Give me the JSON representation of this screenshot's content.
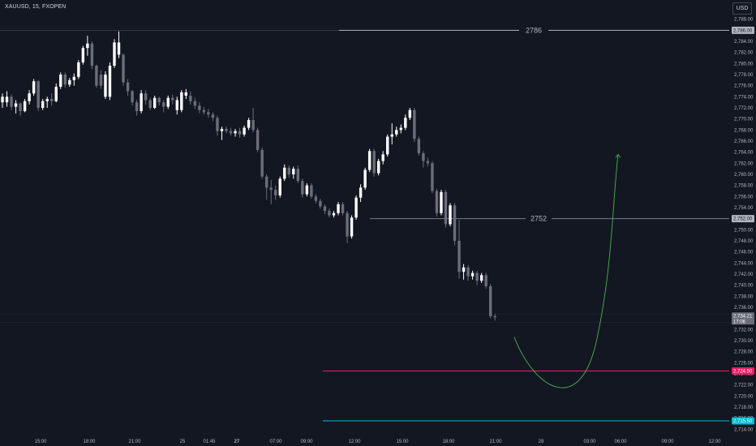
{
  "header": {
    "symbol_title": "XAUUSD, 15, FXOPEN",
    "currency": "USD"
  },
  "chart_data": {
    "type": "candlestick",
    "y_axis": {
      "range": [
        2713.6,
        2790.0
      ],
      "ticks": [
        2788,
        2786,
        2784,
        2782,
        2780,
        2778,
        2776,
        2774,
        2772,
        2770,
        2768,
        2766,
        2764,
        2762,
        2760,
        2758,
        2756,
        2754,
        2752,
        2750,
        2748,
        2746,
        2744,
        2742,
        2740,
        2738,
        2736,
        2734,
        2732,
        2730,
        2728,
        2726,
        2724,
        2722,
        2720,
        2718,
        2716,
        2714
      ],
      "tick_labels": [
        "2,788.00",
        "2,786.00",
        "2,784.00",
        "2,782.00",
        "2,780.00",
        "2,778.00",
        "2,776.00",
        "2,774.00",
        "2,772.00",
        "2,770.00",
        "2,768.00",
        "2,766.00",
        "2,764.00",
        "2,762.00",
        "2,760.00",
        "2,758.00",
        "2,756.00",
        "2,754.00",
        "2,752.00",
        "2,750.00",
        "2,748.00",
        "2,746.00",
        "2,744.00",
        "2,742.00",
        "2,740.00",
        "2,738.00",
        "2,736.00",
        "2,734.00",
        "2,732.00",
        "2,730.00",
        "2,728.00",
        "2,726.00",
        "2,724.00",
        "2,722.00",
        "2,720.00",
        "2,718.00",
        "2,716.00",
        "2,714.00"
      ]
    },
    "x_axis": {
      "labels": [
        "15:00",
        "18:00",
        "21:00",
        "25",
        "01:45",
        "27",
        "07:00",
        "09:00",
        "12:00",
        "15:00",
        "18:00",
        "21:00",
        "28",
        "03:00",
        "06:00",
        "09:00",
        "12:00"
      ],
      "bold_labels": [
        "27"
      ]
    },
    "candles": [
      {
        "o": 2774.0,
        "h": 2774.6,
        "l": 2772.0,
        "c": 2773.0,
        "col": "w"
      },
      {
        "o": 2773.0,
        "h": 2775.0,
        "l": 2772.2,
        "c": 2774.0,
        "col": "w"
      },
      {
        "o": 2774.0,
        "h": 2774.4,
        "l": 2771.6,
        "c": 2772.2,
        "col": "g"
      },
      {
        "o": 2772.2,
        "h": 2773.4,
        "l": 2771.0,
        "c": 2772.8,
        "col": "w"
      },
      {
        "o": 2772.8,
        "h": 2773.0,
        "l": 2770.6,
        "c": 2771.4,
        "col": "g"
      },
      {
        "o": 2771.4,
        "h": 2773.6,
        "l": 2771.2,
        "c": 2773.2,
        "col": "w"
      },
      {
        "o": 2773.2,
        "h": 2775.2,
        "l": 2772.6,
        "c": 2774.6,
        "col": "w"
      },
      {
        "o": 2774.6,
        "h": 2777.2,
        "l": 2774.2,
        "c": 2776.8,
        "col": "w"
      },
      {
        "o": 2776.8,
        "h": 2777.0,
        "l": 2771.4,
        "c": 2772.0,
        "col": "g"
      },
      {
        "o": 2772.0,
        "h": 2773.6,
        "l": 2771.6,
        "c": 2773.2,
        "col": "w"
      },
      {
        "o": 2773.2,
        "h": 2774.0,
        "l": 2772.0,
        "c": 2773.6,
        "col": "w"
      },
      {
        "o": 2773.6,
        "h": 2774.6,
        "l": 2772.4,
        "c": 2773.2,
        "col": "g"
      },
      {
        "o": 2773.2,
        "h": 2776.4,
        "l": 2773.0,
        "c": 2775.8,
        "col": "w"
      },
      {
        "o": 2775.8,
        "h": 2778.4,
        "l": 2775.4,
        "c": 2778.0,
        "col": "w"
      },
      {
        "o": 2778.0,
        "h": 2778.4,
        "l": 2775.6,
        "c": 2776.2,
        "col": "g"
      },
      {
        "o": 2776.2,
        "h": 2777.4,
        "l": 2775.8,
        "c": 2777.0,
        "col": "w"
      },
      {
        "o": 2777.0,
        "h": 2778.2,
        "l": 2776.0,
        "c": 2777.6,
        "col": "w"
      },
      {
        "o": 2777.6,
        "h": 2780.6,
        "l": 2777.2,
        "c": 2780.2,
        "col": "w"
      },
      {
        "o": 2780.2,
        "h": 2783.2,
        "l": 2779.8,
        "c": 2782.8,
        "col": "w"
      },
      {
        "o": 2782.8,
        "h": 2785.0,
        "l": 2781.4,
        "c": 2783.6,
        "col": "w"
      },
      {
        "o": 2783.6,
        "h": 2784.0,
        "l": 2779.0,
        "c": 2779.6,
        "col": "g"
      },
      {
        "o": 2779.6,
        "h": 2779.8,
        "l": 2775.6,
        "c": 2776.0,
        "col": "g"
      },
      {
        "o": 2776.0,
        "h": 2778.8,
        "l": 2775.4,
        "c": 2778.0,
        "col": "g"
      },
      {
        "o": 2778.0,
        "h": 2778.6,
        "l": 2773.6,
        "c": 2774.0,
        "col": "w"
      },
      {
        "o": 2774.0,
        "h": 2780.2,
        "l": 2773.4,
        "c": 2779.6,
        "col": "w"
      },
      {
        "o": 2779.6,
        "h": 2784.4,
        "l": 2779.2,
        "c": 2783.8,
        "col": "w"
      },
      {
        "o": 2783.8,
        "h": 2785.8,
        "l": 2781.0,
        "c": 2781.6,
        "col": "w"
      },
      {
        "o": 2781.6,
        "h": 2781.8,
        "l": 2776.0,
        "c": 2776.6,
        "col": "g"
      },
      {
        "o": 2776.6,
        "h": 2777.2,
        "l": 2774.2,
        "c": 2775.0,
        "col": "g"
      },
      {
        "o": 2775.0,
        "h": 2775.2,
        "l": 2772.4,
        "c": 2773.0,
        "col": "g"
      },
      {
        "o": 2773.0,
        "h": 2773.4,
        "l": 2770.6,
        "c": 2771.4,
        "col": "g"
      },
      {
        "o": 2771.4,
        "h": 2775.2,
        "l": 2771.0,
        "c": 2774.6,
        "col": "w"
      },
      {
        "o": 2774.6,
        "h": 2775.2,
        "l": 2772.6,
        "c": 2773.4,
        "col": "g"
      },
      {
        "o": 2773.4,
        "h": 2773.8,
        "l": 2771.6,
        "c": 2772.0,
        "col": "g"
      },
      {
        "o": 2772.0,
        "h": 2774.2,
        "l": 2771.8,
        "c": 2773.8,
        "col": "w"
      },
      {
        "o": 2773.8,
        "h": 2774.0,
        "l": 2772.4,
        "c": 2773.0,
        "col": "g"
      },
      {
        "o": 2773.0,
        "h": 2773.4,
        "l": 2771.2,
        "c": 2772.2,
        "col": "g"
      },
      {
        "o": 2772.2,
        "h": 2774.2,
        "l": 2771.8,
        "c": 2773.8,
        "col": "w"
      },
      {
        "o": 2773.8,
        "h": 2774.4,
        "l": 2772.6,
        "c": 2773.4,
        "col": "g"
      },
      {
        "o": 2773.4,
        "h": 2774.0,
        "l": 2770.8,
        "c": 2771.6,
        "col": "w"
      },
      {
        "o": 2771.6,
        "h": 2775.2,
        "l": 2771.2,
        "c": 2774.8,
        "col": "w"
      },
      {
        "o": 2774.8,
        "h": 2775.4,
        "l": 2773.6,
        "c": 2774.2,
        "col": "w"
      },
      {
        "o": 2774.2,
        "h": 2775.0,
        "l": 2772.6,
        "c": 2773.2,
        "col": "g"
      },
      {
        "o": 2773.2,
        "h": 2773.8,
        "l": 2771.8,
        "c": 2772.4,
        "col": "g"
      },
      {
        "o": 2772.4,
        "h": 2773.0,
        "l": 2771.0,
        "c": 2771.6,
        "col": "g"
      },
      {
        "o": 2771.6,
        "h": 2772.2,
        "l": 2770.8,
        "c": 2771.2,
        "col": "g"
      },
      {
        "o": 2771.2,
        "h": 2771.8,
        "l": 2770.2,
        "c": 2770.8,
        "col": "g"
      },
      {
        "o": 2770.8,
        "h": 2771.2,
        "l": 2769.6,
        "c": 2770.2,
        "col": "g"
      },
      {
        "o": 2770.2,
        "h": 2770.6,
        "l": 2767.0,
        "c": 2767.8,
        "col": "g"
      },
      {
        "o": 2767.8,
        "h": 2768.6,
        "l": 2766.2,
        "c": 2768.2,
        "col": "w"
      },
      {
        "o": 2768.2,
        "h": 2768.6,
        "l": 2767.4,
        "c": 2767.8,
        "col": "g"
      },
      {
        "o": 2767.8,
        "h": 2768.4,
        "l": 2767.0,
        "c": 2767.4,
        "col": "g"
      },
      {
        "o": 2767.4,
        "h": 2768.2,
        "l": 2766.8,
        "c": 2767.8,
        "col": "w"
      },
      {
        "o": 2767.8,
        "h": 2768.4,
        "l": 2766.6,
        "c": 2767.2,
        "col": "g"
      },
      {
        "o": 2767.2,
        "h": 2768.8,
        "l": 2766.8,
        "c": 2768.4,
        "col": "w"
      },
      {
        "o": 2768.4,
        "h": 2770.2,
        "l": 2768.0,
        "c": 2769.8,
        "col": "w"
      },
      {
        "o": 2769.8,
        "h": 2772.0,
        "l": 2767.6,
        "c": 2768.0,
        "col": "g"
      },
      {
        "o": 2768.0,
        "h": 2768.4,
        "l": 2764.0,
        "c": 2764.4,
        "col": "g"
      },
      {
        "o": 2764.4,
        "h": 2764.8,
        "l": 2759.2,
        "c": 2759.6,
        "col": "g"
      },
      {
        "o": 2759.6,
        "h": 2760.0,
        "l": 2755.4,
        "c": 2757.6,
        "col": "g"
      },
      {
        "o": 2757.6,
        "h": 2759.0,
        "l": 2754.6,
        "c": 2757.2,
        "col": "g"
      },
      {
        "o": 2757.2,
        "h": 2758.0,
        "l": 2755.4,
        "c": 2756.2,
        "col": "g"
      },
      {
        "o": 2756.2,
        "h": 2759.6,
        "l": 2755.8,
        "c": 2759.2,
        "col": "w"
      },
      {
        "o": 2759.2,
        "h": 2761.8,
        "l": 2758.8,
        "c": 2761.2,
        "col": "w"
      },
      {
        "o": 2761.2,
        "h": 2761.6,
        "l": 2759.4,
        "c": 2760.0,
        "col": "g"
      },
      {
        "o": 2760.0,
        "h": 2761.4,
        "l": 2759.2,
        "c": 2761.0,
        "col": "w"
      },
      {
        "o": 2761.0,
        "h": 2761.6,
        "l": 2758.4,
        "c": 2758.8,
        "col": "g"
      },
      {
        "o": 2758.8,
        "h": 2759.2,
        "l": 2755.8,
        "c": 2756.4,
        "col": "g"
      },
      {
        "o": 2756.4,
        "h": 2758.4,
        "l": 2756.0,
        "c": 2758.0,
        "col": "w"
      },
      {
        "o": 2758.0,
        "h": 2758.4,
        "l": 2755.6,
        "c": 2756.0,
        "col": "g"
      },
      {
        "o": 2756.0,
        "h": 2756.4,
        "l": 2754.8,
        "c": 2755.2,
        "col": "g"
      },
      {
        "o": 2755.2,
        "h": 2755.6,
        "l": 2753.8,
        "c": 2754.2,
        "col": "g"
      },
      {
        "o": 2754.2,
        "h": 2754.6,
        "l": 2752.8,
        "c": 2753.4,
        "col": "g"
      },
      {
        "o": 2753.4,
        "h": 2753.8,
        "l": 2752.2,
        "c": 2752.6,
        "col": "g"
      },
      {
        "o": 2752.6,
        "h": 2753.4,
        "l": 2752.2,
        "c": 2753.0,
        "col": "w"
      },
      {
        "o": 2753.0,
        "h": 2755.0,
        "l": 2752.6,
        "c": 2754.6,
        "col": "w"
      },
      {
        "o": 2754.6,
        "h": 2755.0,
        "l": 2752.6,
        "c": 2753.0,
        "col": "g"
      },
      {
        "o": 2753.0,
        "h": 2753.4,
        "l": 2747.6,
        "c": 2748.8,
        "col": "g"
      },
      {
        "o": 2748.8,
        "h": 2752.6,
        "l": 2748.4,
        "c": 2752.2,
        "col": "w"
      },
      {
        "o": 2752.2,
        "h": 2756.2,
        "l": 2751.8,
        "c": 2755.8,
        "col": "w"
      },
      {
        "o": 2755.8,
        "h": 2758.2,
        "l": 2755.0,
        "c": 2757.6,
        "col": "w"
      },
      {
        "o": 2757.6,
        "h": 2761.2,
        "l": 2757.2,
        "c": 2760.8,
        "col": "w"
      },
      {
        "o": 2760.8,
        "h": 2764.6,
        "l": 2760.4,
        "c": 2764.2,
        "col": "w"
      },
      {
        "o": 2764.2,
        "h": 2764.6,
        "l": 2759.6,
        "c": 2760.2,
        "col": "g"
      },
      {
        "o": 2760.2,
        "h": 2762.8,
        "l": 2759.8,
        "c": 2762.4,
        "col": "w"
      },
      {
        "o": 2762.4,
        "h": 2764.2,
        "l": 2761.8,
        "c": 2763.6,
        "col": "w"
      },
      {
        "o": 2763.6,
        "h": 2767.2,
        "l": 2763.2,
        "c": 2766.8,
        "col": "w"
      },
      {
        "o": 2766.8,
        "h": 2769.2,
        "l": 2765.4,
        "c": 2767.2,
        "col": "w"
      },
      {
        "o": 2767.2,
        "h": 2768.6,
        "l": 2766.8,
        "c": 2768.0,
        "col": "w"
      },
      {
        "o": 2768.0,
        "h": 2769.0,
        "l": 2767.4,
        "c": 2768.4,
        "col": "w"
      },
      {
        "o": 2768.4,
        "h": 2770.8,
        "l": 2768.0,
        "c": 2770.2,
        "col": "w"
      },
      {
        "o": 2770.2,
        "h": 2772.0,
        "l": 2769.8,
        "c": 2771.6,
        "col": "w"
      },
      {
        "o": 2771.6,
        "h": 2772.0,
        "l": 2765.8,
        "c": 2766.4,
        "col": "g"
      },
      {
        "o": 2766.4,
        "h": 2766.8,
        "l": 2763.4,
        "c": 2763.8,
        "col": "g"
      },
      {
        "o": 2763.8,
        "h": 2764.2,
        "l": 2761.2,
        "c": 2762.4,
        "col": "g"
      },
      {
        "o": 2762.4,
        "h": 2763.0,
        "l": 2761.4,
        "c": 2762.0,
        "col": "g"
      },
      {
        "o": 2762.0,
        "h": 2762.4,
        "l": 2756.6,
        "c": 2757.0,
        "col": "g"
      },
      {
        "o": 2757.0,
        "h": 2757.4,
        "l": 2752.4,
        "c": 2753.0,
        "col": "g"
      },
      {
        "o": 2753.0,
        "h": 2757.2,
        "l": 2752.6,
        "c": 2756.8,
        "col": "w"
      },
      {
        "o": 2756.8,
        "h": 2757.2,
        "l": 2750.4,
        "c": 2751.0,
        "col": "g"
      },
      {
        "o": 2751.0,
        "h": 2754.8,
        "l": 2750.6,
        "c": 2754.4,
        "col": "w"
      },
      {
        "o": 2754.4,
        "h": 2754.8,
        "l": 2747.2,
        "c": 2748.0,
        "col": "g"
      },
      {
        "o": 2748.0,
        "h": 2751.8,
        "l": 2741.2,
        "c": 2742.4,
        "col": "g"
      },
      {
        "o": 2742.4,
        "h": 2743.8,
        "l": 2741.0,
        "c": 2743.2,
        "col": "w"
      },
      {
        "o": 2743.2,
        "h": 2743.6,
        "l": 2740.8,
        "c": 2741.6,
        "col": "g"
      },
      {
        "o": 2741.6,
        "h": 2742.6,
        "l": 2741.0,
        "c": 2742.2,
        "col": "w"
      },
      {
        "o": 2742.2,
        "h": 2742.6,
        "l": 2740.0,
        "c": 2740.8,
        "col": "g"
      },
      {
        "o": 2740.8,
        "h": 2742.2,
        "l": 2740.4,
        "c": 2741.8,
        "col": "w"
      },
      {
        "o": 2741.8,
        "h": 2742.2,
        "l": 2739.4,
        "c": 2739.8,
        "col": "g"
      },
      {
        "o": 2739.8,
        "h": 2740.2,
        "l": 2734.0,
        "c": 2734.4,
        "col": "g"
      },
      {
        "o": 2734.4,
        "h": 2734.8,
        "l": 2733.6,
        "c": 2734.2,
        "col": "g"
      }
    ],
    "horizontal_levels": [
      {
        "price": 2786,
        "label": "2786",
        "tag": "2,786.00",
        "color": "#b2b5be"
      },
      {
        "price": 2752,
        "label": "2752",
        "tag": "2,752.00",
        "color": "#787b86"
      },
      {
        "price": 2724.5,
        "label": "",
        "tag": "2,724.50",
        "color": "#e91e63"
      },
      {
        "price": 2715.5,
        "label": "",
        "tag": "2,715.50",
        "color": "#00bcd4"
      }
    ],
    "current_price": {
      "tag": "2,734.21",
      "countdown": "17:06"
    },
    "projection": {
      "color": "#4caf50",
      "points": [
        [
          2730.6,
          0
        ],
        [
          2722.4,
          0.5
        ],
        [
          2763.6,
          1
        ]
      ]
    },
    "colors": {
      "background": "#131722",
      "bull_candle": "#ffffff",
      "bear_candle": "#6b6e78",
      "grid": "#1e222d"
    }
  }
}
